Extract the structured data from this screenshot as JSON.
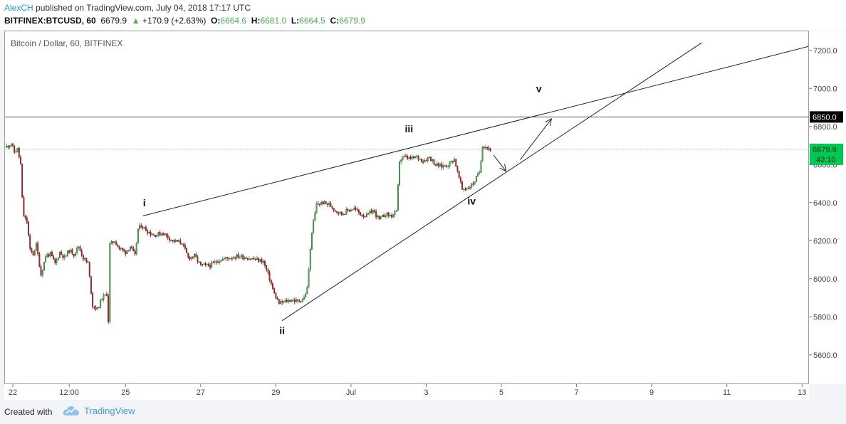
{
  "header": {
    "author": "AlexCH",
    "published_text": " published on TradingView.com, July 04, 2018 17:17 UTC",
    "symbol": "BITFINEX:BTCUSD, 60",
    "last": "6679.9",
    "change_arrow": "▲",
    "change": "+170.9 (+2.63%)",
    "o_label": "O:",
    "o_value": "6664.6",
    "h_label": "H:",
    "h_value": "6681.0",
    "l_label": "L:",
    "l_value": "6664.5",
    "c_label": "C:",
    "c_value": "6679.9"
  },
  "footer": {
    "created_with": "Created with",
    "brand": "TradingView",
    "logo_icon": "tradingview-cloud-icon"
  },
  "colors": {
    "up": "#4caf50",
    "down": "#b71c1c",
    "price_badge": "#00c853",
    "level_badge": "#000000",
    "accent": "#2196f3"
  },
  "chart_data": {
    "type": "candlestick",
    "title": "Bitcoin / Dollar, 60, BITFINEX",
    "ylim": [
      5450,
      7300
    ],
    "y_ticks": [
      5600,
      5800,
      6000,
      6200,
      6400,
      6600,
      6800,
      7000,
      7200
    ],
    "y_tick_labels": [
      "5600.0",
      "5800.0",
      "6000.0",
      "6200.0",
      "6400.0",
      "6600.0",
      "6800.0",
      "7000.0",
      "7200.0"
    ],
    "x_range": [
      "2018-06-21T19:00",
      "2018-07-13T04:00"
    ],
    "x_ticks": [
      {
        "t": "2018-06-22T00:00",
        "label": "22"
      },
      {
        "t": "2018-06-23T12:00",
        "label": "12:00"
      },
      {
        "t": "2018-06-25T00:00",
        "label": "25"
      },
      {
        "t": "2018-06-27T00:00",
        "label": "27"
      },
      {
        "t": "2018-06-29T00:00",
        "label": "29"
      },
      {
        "t": "2018-07-01T00:00",
        "label": "Jul"
      },
      {
        "t": "2018-07-03T00:00",
        "label": "3"
      },
      {
        "t": "2018-07-05T00:00",
        "label": "5"
      },
      {
        "t": "2018-07-07T00:00",
        "label": "7"
      },
      {
        "t": "2018-07-09T00:00",
        "label": "9"
      },
      {
        "t": "2018-07-11T00:00",
        "label": "11"
      },
      {
        "t": "2018-07-13T00:00",
        "label": "13"
      }
    ],
    "price_path": [
      [
        "2018-06-21T19:00",
        6690
      ],
      [
        "2018-06-21T23:00",
        6710
      ],
      [
        "2018-06-22T01:00",
        6665
      ],
      [
        "2018-06-22T03:00",
        6680
      ],
      [
        "2018-06-22T05:00",
        6600
      ],
      [
        "2018-06-22T06:00",
        6420
      ],
      [
        "2018-06-22T07:00",
        6330
      ],
      [
        "2018-06-22T09:00",
        6300
      ],
      [
        "2018-06-22T11:00",
        6150
      ],
      [
        "2018-06-22T13:00",
        6130
      ],
      [
        "2018-06-22T15:00",
        6180
      ],
      [
        "2018-06-22T18:00",
        6020
      ],
      [
        "2018-06-22T21:00",
        6120
      ],
      [
        "2018-06-23T00:00",
        6130
      ],
      [
        "2018-06-23T03:00",
        6080
      ],
      [
        "2018-06-23T06:00",
        6140
      ],
      [
        "2018-06-23T09:00",
        6110
      ],
      [
        "2018-06-23T12:00",
        6150
      ],
      [
        "2018-06-23T15:00",
        6130
      ],
      [
        "2018-06-23T18:00",
        6170
      ],
      [
        "2018-06-23T21:00",
        6110
      ],
      [
        "2018-06-24T00:00",
        6080
      ],
      [
        "2018-06-24T03:00",
        5860
      ],
      [
        "2018-06-24T06:00",
        5840
      ],
      [
        "2018-06-24T09:00",
        5900
      ],
      [
        "2018-06-24T12:00",
        5920
      ],
      [
        "2018-06-24T13:00",
        5780
      ],
      [
        "2018-06-24T14:00",
        6180
      ],
      [
        "2018-06-24T17:00",
        6200
      ],
      [
        "2018-06-24T20:00",
        6160
      ],
      [
        "2018-06-25T00:00",
        6140
      ],
      [
        "2018-06-25T03:00",
        6170
      ],
      [
        "2018-06-25T06:00",
        6120
      ],
      [
        "2018-06-25T08:00",
        6260
      ],
      [
        "2018-06-25T10:00",
        6280
      ],
      [
        "2018-06-25T14:00",
        6250
      ],
      [
        "2018-06-25T18:00",
        6230
      ],
      [
        "2018-06-26T00:00",
        6240
      ],
      [
        "2018-06-26T06:00",
        6200
      ],
      [
        "2018-06-26T12:00",
        6190
      ],
      [
        "2018-06-26T16:00",
        6110
      ],
      [
        "2018-06-26T20:00",
        6120
      ],
      [
        "2018-06-27T00:00",
        6070
      ],
      [
        "2018-06-27T06:00",
        6070
      ],
      [
        "2018-06-27T12:00",
        6100
      ],
      [
        "2018-06-27T18:00",
        6110
      ],
      [
        "2018-06-28T00:00",
        6120
      ],
      [
        "2018-06-28T06:00",
        6110
      ],
      [
        "2018-06-28T12:00",
        6100
      ],
      [
        "2018-06-28T16:00",
        6090
      ],
      [
        "2018-06-28T20:00",
        6000
      ],
      [
        "2018-06-28T23:00",
        5920
      ],
      [
        "2018-06-29T02:00",
        5870
      ],
      [
        "2018-06-29T06:00",
        5880
      ],
      [
        "2018-06-29T10:00",
        5890
      ],
      [
        "2018-06-29T14:00",
        5880
      ],
      [
        "2018-06-29T18:00",
        5900
      ],
      [
        "2018-06-29T20:00",
        5950
      ],
      [
        "2018-06-29T23:00",
        6250
      ],
      [
        "2018-06-30T02:00",
        6390
      ],
      [
        "2018-06-30T06:00",
        6400
      ],
      [
        "2018-06-30T10:00",
        6390
      ],
      [
        "2018-06-30T14:00",
        6360
      ],
      [
        "2018-06-30T18:00",
        6340
      ],
      [
        "2018-06-30T22:00",
        6360
      ],
      [
        "2018-07-01T02:00",
        6370
      ],
      [
        "2018-07-01T06:00",
        6340
      ],
      [
        "2018-07-01T10:00",
        6330
      ],
      [
        "2018-07-01T14:00",
        6360
      ],
      [
        "2018-07-01T18:00",
        6310
      ],
      [
        "2018-07-01T22:00",
        6340
      ],
      [
        "2018-07-02T02:00",
        6330
      ],
      [
        "2018-07-02T05:00",
        6350
      ],
      [
        "2018-07-02T07:00",
        6620
      ],
      [
        "2018-07-02T10:00",
        6640
      ],
      [
        "2018-07-02T14:00",
        6630
      ],
      [
        "2018-07-02T18:00",
        6640
      ],
      [
        "2018-07-02T22:00",
        6620
      ],
      [
        "2018-07-03T02:00",
        6640
      ],
      [
        "2018-07-03T06:00",
        6600
      ],
      [
        "2018-07-03T10:00",
        6590
      ],
      [
        "2018-07-03T14:00",
        6600
      ],
      [
        "2018-07-03T18:00",
        6630
      ],
      [
        "2018-07-03T20:00",
        6560
      ],
      [
        "2018-07-03T23:00",
        6470
      ],
      [
        "2018-07-04T03:00",
        6480
      ],
      [
        "2018-07-04T06:00",
        6500
      ],
      [
        "2018-07-04T08:00",
        6530
      ],
      [
        "2018-07-04T10:00",
        6560
      ],
      [
        "2018-07-04T12:00",
        6700
      ],
      [
        "2018-07-04T15:00",
        6690
      ],
      [
        "2018-07-04T17:00",
        6680
      ]
    ],
    "reference_lines": [
      {
        "kind": "horizontal",
        "price": 6850,
        "label": "6850.0"
      },
      {
        "kind": "current_price",
        "price": 6679.9,
        "label": "6679.9",
        "countdown": "42:10"
      }
    ],
    "trendlines": [
      {
        "name": "wedge-upper",
        "from": [
          "2018-06-25T11:00",
          6330
        ],
        "to": [
          "2018-07-13T04:00",
          7220
        ]
      },
      {
        "name": "wedge-lower",
        "from": [
          "2018-06-29T04:00",
          5780
        ],
        "to": [
          "2018-07-10T08:00",
          7240
        ]
      }
    ],
    "arrows": [
      {
        "from": [
          "2018-07-04T19:00",
          6650
        ],
        "to": [
          "2018-07-05T03:00",
          6565
        ]
      },
      {
        "from": [
          "2018-07-05T12:00",
          6625
        ],
        "to": [
          "2018-07-06T08:00",
          6840
        ]
      }
    ],
    "wave_labels": [
      {
        "text": "i",
        "at": [
          "2018-06-25T12:00",
          6380
        ]
      },
      {
        "text": "ii",
        "at": [
          "2018-06-29T04:00",
          5710
        ]
      },
      {
        "text": "iii",
        "at": [
          "2018-07-02T13:00",
          6770
        ]
      },
      {
        "text": "iv",
        "at": [
          "2018-07-04T05:00",
          6390
        ]
      },
      {
        "text": "v",
        "at": [
          "2018-07-06T00:00",
          6980
        ]
      }
    ]
  }
}
